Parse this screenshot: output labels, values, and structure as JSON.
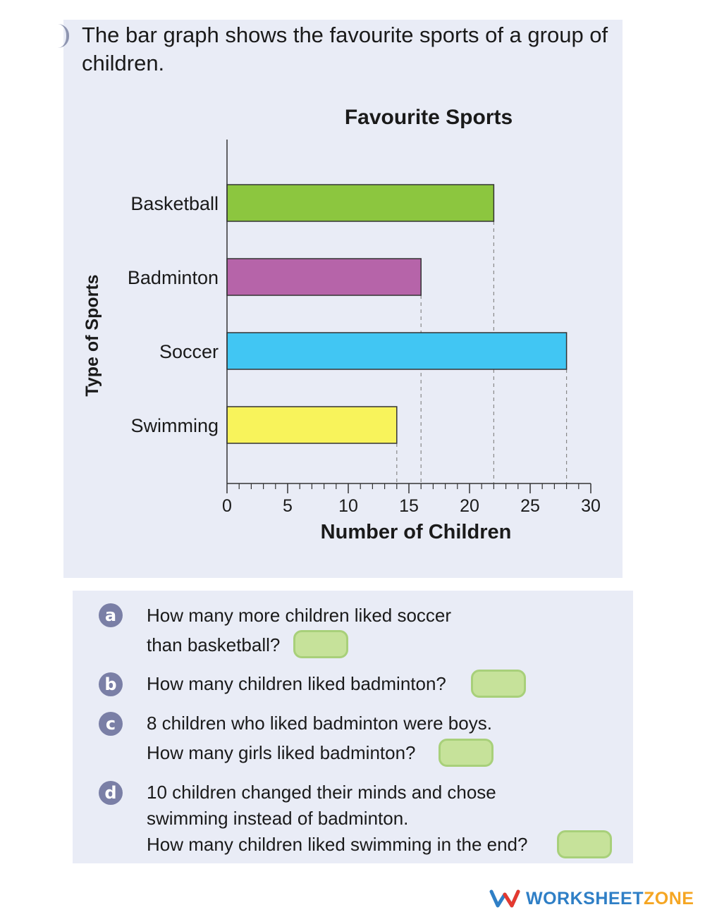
{
  "intro_text": "The bar graph shows the favourite sports of a group of children.",
  "chart_data": {
    "type": "bar",
    "orientation": "horizontal",
    "title": "Favourite Sports",
    "xlabel": "Number of Children",
    "ylabel": "Type of Sports",
    "categories": [
      "Basketball",
      "Badminton",
      "Soccer",
      "Swimming"
    ],
    "values": [
      22,
      16,
      28,
      14
    ],
    "colors": [
      "#8cc63f",
      "#b664a9",
      "#41c6f3",
      "#f8f35b"
    ],
    "xlim": [
      0,
      30
    ],
    "x_major_ticks": [
      0,
      5,
      10,
      15,
      20,
      25,
      30
    ],
    "x_minor_step": 1,
    "grid": false,
    "legend": "none"
  },
  "questions": [
    {
      "letter": "a",
      "lines": [
        "How many more children liked soccer",
        "than basketball?"
      ]
    },
    {
      "letter": "b",
      "lines": [
        "How many children liked badminton?"
      ]
    },
    {
      "letter": "c",
      "lines": [
        "8 children who liked badminton were boys.",
        "How many girls liked badminton?"
      ]
    },
    {
      "letter": "d",
      "lines": [
        "10 children changed their minds and chose",
        "swimming instead of badminton.",
        "How many children liked swimming in the end?"
      ]
    }
  ],
  "brand": {
    "part1": "WORKSHEET",
    "part2": "ZONE"
  }
}
